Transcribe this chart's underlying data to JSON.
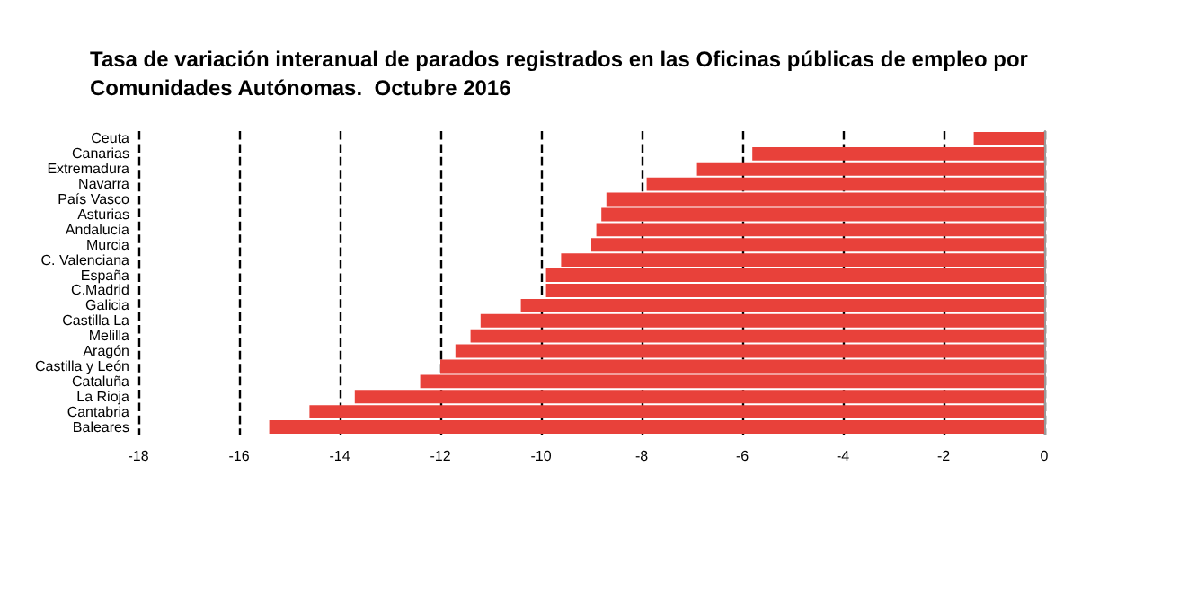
{
  "chart_data": {
    "type": "bar",
    "orientation": "horizontal",
    "title": "Tasa de variación interanual de parados registrados en las Oficinas públicas de empleo por\nComunidades Autónomas.  Octubre 2016",
    "categories": [
      "Ceuta",
      "Canarias",
      "Extremadura",
      "Navarra",
      "País Vasco",
      "Asturias",
      "Andalucía",
      "Murcia",
      "C. Valenciana",
      "España",
      "C.Madrid",
      "Galicia",
      "Castilla La",
      "Melilla",
      "Aragón",
      "Castilla y León",
      "Cataluña",
      "La Rioja",
      "Cantabria",
      "Baleares"
    ],
    "values": [
      -1.4,
      -5.8,
      -6.9,
      -7.9,
      -8.7,
      -8.8,
      -8.9,
      -9.0,
      -9.6,
      -9.9,
      -9.9,
      -10.4,
      -11.2,
      -11.4,
      -11.7,
      -12.0,
      -12.4,
      -13.7,
      -14.6,
      -15.4
    ],
    "color": "#e8413a",
    "xlim": [
      -18,
      0
    ],
    "xticks": [
      -18,
      -16,
      -14,
      -12,
      -10,
      -8,
      -6,
      -4,
      -2,
      0
    ],
    "grid": "x",
    "line_style": "dashed"
  }
}
